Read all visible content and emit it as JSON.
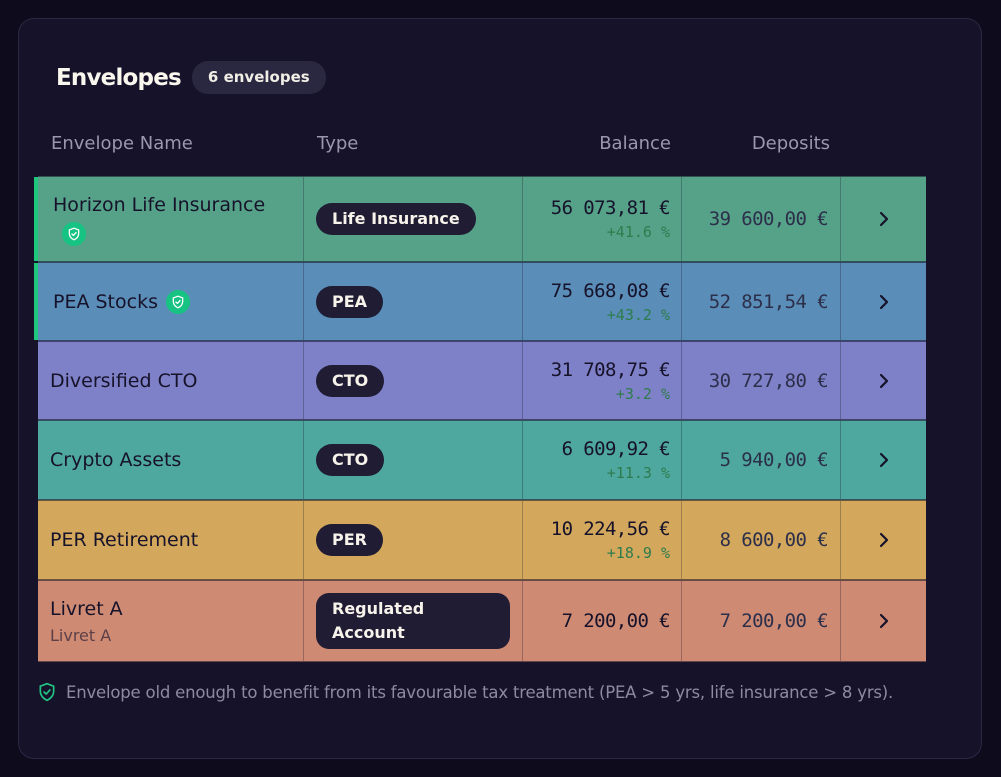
{
  "header": {
    "title": "Envelopes",
    "count_badge": "6 envelopes"
  },
  "table": {
    "columns": {
      "name": "Envelope Name",
      "type": "Type",
      "balance": "Balance",
      "deposits": "Deposits"
    },
    "rows": [
      {
        "name": "Horizon Life Insurance",
        "subtitle": "",
        "tax_advantaged": true,
        "type": "Life Insurance",
        "balance": "56 073,81 €",
        "performance": "+41.6 %",
        "deposits": "39 600,00 €",
        "color": "#56a289"
      },
      {
        "name": "PEA Stocks",
        "subtitle": "",
        "tax_advantaged": true,
        "type": "PEA",
        "balance": "75 668,08 €",
        "performance": "+43.2 %",
        "deposits": "52 851,54 €",
        "color": "#5a8db8"
      },
      {
        "name": "Diversified CTO",
        "subtitle": "",
        "tax_advantaged": false,
        "type": "CTO",
        "balance": "31 708,75 €",
        "performance": "+3.2 %",
        "deposits": "30 727,80 €",
        "color": "#7f81c8"
      },
      {
        "name": "Crypto Assets",
        "subtitle": "",
        "tax_advantaged": false,
        "type": "CTO",
        "balance": "6 609,92 €",
        "performance": "+11.3 %",
        "deposits": "5 940,00 €",
        "color": "#4ea89f"
      },
      {
        "name": "PER Retirement",
        "subtitle": "",
        "tax_advantaged": false,
        "type": "PER",
        "balance": "10 224,56 €",
        "performance": "+18.9 %",
        "deposits": "8 600,00 €",
        "color": "#d3a85c"
      },
      {
        "name": "Livret A",
        "subtitle": "Livret A",
        "tax_advantaged": false,
        "type": "Regulated Account",
        "balance": "7 200,00 €",
        "performance": "",
        "deposits": "7 200,00 €",
        "color": "#ce8a73"
      }
    ]
  },
  "footnote": {
    "text": "Envelope old enough to benefit from its favourable tax treatment (PEA > 5 yrs, life insurance > 8 yrs)."
  },
  "colors": {
    "accent": "#1fc77d",
    "background": "#0e0b1c",
    "card": "#151229",
    "pill": "#1f1c34"
  },
  "icons": {
    "tax_advantaged": "shield-check-icon",
    "open_row": "chevron-right-icon"
  }
}
